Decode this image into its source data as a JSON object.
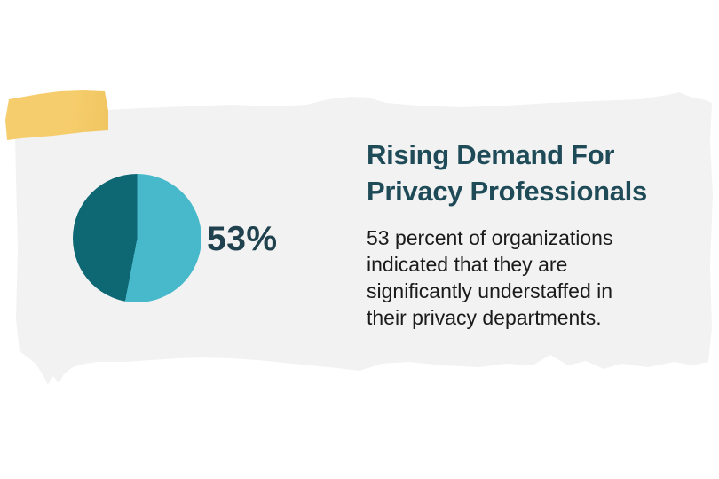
{
  "colors": {
    "background": "#ffffff",
    "paper": "#f2f2f2",
    "tape": "#f6cd6c",
    "pie_primary": "#47b9cb",
    "pie_secondary": "#0d6874",
    "heading": "#1f4b58",
    "stat": "#20414e",
    "body": "#1b1b1b"
  },
  "infographic": {
    "stat_label": "53%",
    "heading_line1": "Rising Demand For",
    "heading_line2": "Privacy Professionals",
    "body_lines": [
      "53 percent of organizations",
      "indicated that they are",
      "significantly understaffed in",
      "their privacy departments."
    ]
  },
  "chart_data": {
    "type": "pie",
    "title": "",
    "data_label": "53%",
    "slices": [
      {
        "value": 53,
        "color": "#47b9cb"
      },
      {
        "value": 47,
        "color": "#0d6874"
      }
    ],
    "start_angle_deg": 0,
    "direction": "clockwise",
    "legend": false
  }
}
